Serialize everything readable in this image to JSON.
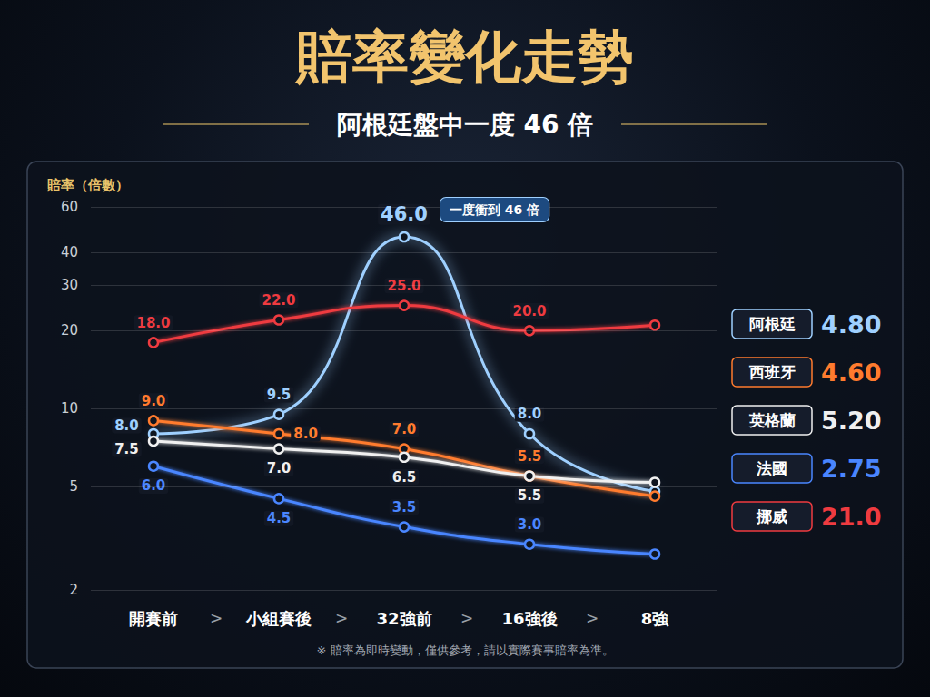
{
  "chart_data": {
    "type": "line",
    "title": "賠率變化走勢",
    "subtitle": "阿根廷盤中一度 46 倍",
    "y_label": "賠率（倍數）",
    "annotation": {
      "text": "一度衝到 46 倍",
      "series": "阿根廷",
      "x": "32強前",
      "y": 46
    },
    "footnote": "※ 賠率為即時變動，僅供參考，請以實際賽事賠率為準。",
    "category_separator": ">",
    "categories": [
      "開賽前",
      "小組賽後",
      "32強前",
      "16強後",
      "8強"
    ],
    "series": [
      {
        "name": "阿根廷",
        "color": "#9fd0ff",
        "values": [
          8,
          9.5,
          46,
          8,
          4.8
        ],
        "value_labels": [
          "8.0",
          "9.5",
          "46.0",
          "8.0",
          "4.80"
        ]
      },
      {
        "name": "西班牙",
        "color": "#ff7b2e",
        "values": [
          9,
          8,
          7,
          5.5,
          4.6
        ],
        "value_labels": [
          "9.0",
          "8.0",
          "7.0",
          "5.5",
          "4.60"
        ]
      },
      {
        "name": "英格蘭",
        "color": "#f0f0f0",
        "values": [
          7.5,
          7,
          6.5,
          5.5,
          5.2
        ],
        "value_labels": [
          "7.5",
          "7.0",
          "6.5",
          "5.5",
          "5.20"
        ]
      },
      {
        "name": "法國",
        "color": "#4a86ff",
        "values": [
          6,
          4.5,
          3.5,
          3,
          2.75
        ],
        "value_labels": [
          "6.0",
          "4.5",
          "3.5",
          "3.0",
          "2.75"
        ]
      },
      {
        "name": "挪威",
        "color": "#ef3b40",
        "values": [
          18,
          22,
          25,
          20,
          21
        ],
        "value_labels": [
          "18.0",
          "22.0",
          "25.0",
          "20.0",
          "21.0"
        ]
      }
    ],
    "ylim": [
      2,
      60
    ],
    "yticks": [
      2,
      5,
      10,
      20,
      30,
      40,
      60
    ],
    "log": "y",
    "grid": true,
    "data_labels": true,
    "marker": "circle",
    "line_style": "smooth"
  }
}
